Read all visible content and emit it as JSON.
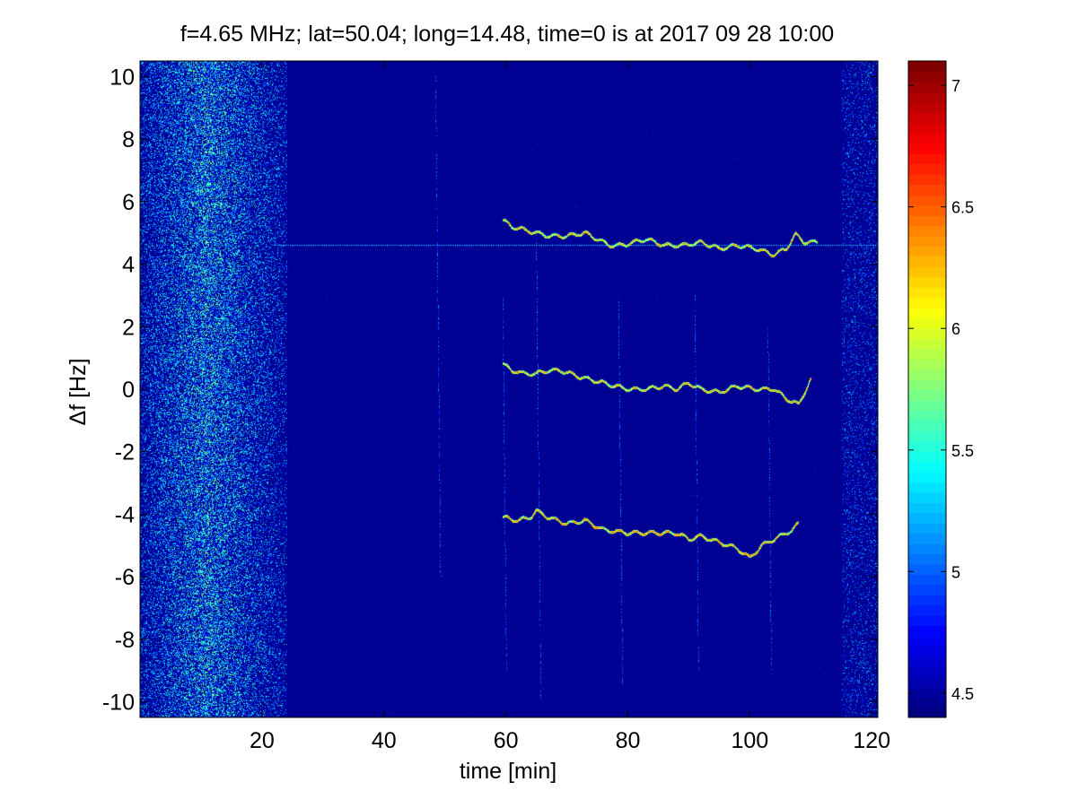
{
  "chart_data": {
    "type": "heatmap",
    "title": "f=4.65 MHz;  lat=50.04; long=14.48, time=0 is at 2017 09 28 10:00",
    "xlabel": "time [min]",
    "ylabel": "Δf [Hz]",
    "xlim": [
      0,
      121
    ],
    "ylim": [
      -10.5,
      10.5
    ],
    "xticks": [
      20,
      40,
      60,
      80,
      100,
      120
    ],
    "yticks": [
      10,
      8,
      6,
      4,
      2,
      0,
      -2,
      -4,
      -6,
      -8,
      -10
    ],
    "colorbar": {
      "colormap": "jet",
      "range": [
        4.4,
        7.1
      ],
      "ticks": [
        4.5,
        5,
        5.5,
        6,
        6.5,
        7
      ]
    },
    "background_level": 4.45,
    "noise_band": {
      "x_range": [
        0,
        24
      ],
      "peak_x": 11,
      "typical_level": 5.0
    },
    "carrier_line": {
      "y": 4.6,
      "x_range": [
        22,
        121
      ],
      "level": 5.2
    },
    "traces": [
      {
        "name": "upper",
        "points": [
          [
            59.5,
            5.4
          ],
          [
            61,
            5.2
          ],
          [
            63,
            5.1
          ],
          [
            65,
            5.0
          ],
          [
            67,
            4.9
          ],
          [
            70,
            4.9
          ],
          [
            73,
            5.0
          ],
          [
            75,
            4.8
          ],
          [
            77,
            4.6
          ],
          [
            79,
            4.6
          ],
          [
            81,
            4.7
          ],
          [
            83,
            4.8
          ],
          [
            86,
            4.6
          ],
          [
            89,
            4.6
          ],
          [
            92,
            4.7
          ],
          [
            95,
            4.5
          ],
          [
            98,
            4.6
          ],
          [
            101,
            4.5
          ],
          [
            104,
            4.3
          ],
          [
            106,
            4.5
          ],
          [
            107.5,
            4.95
          ],
          [
            109,
            4.7
          ],
          [
            111,
            4.7
          ]
        ],
        "level": 6.0
      },
      {
        "name": "middle",
        "points": [
          [
            59.5,
            0.8
          ],
          [
            61,
            0.6
          ],
          [
            63,
            0.5
          ],
          [
            65,
            0.5
          ],
          [
            67,
            0.6
          ],
          [
            69,
            0.6
          ],
          [
            72,
            0.4
          ],
          [
            74,
            0.3
          ],
          [
            76,
            0.2
          ],
          [
            78,
            0.1
          ],
          [
            80,
            0.0
          ],
          [
            83,
            0.0
          ],
          [
            86,
            0.1
          ],
          [
            88,
            0.0
          ],
          [
            90,
            0.2
          ],
          [
            92,
            0.0
          ],
          [
            95,
            -0.1
          ],
          [
            98,
            0.1
          ],
          [
            101,
            0.0
          ],
          [
            104,
            0.0
          ],
          [
            106,
            -0.3
          ],
          [
            108,
            -0.5
          ],
          [
            110,
            0.3
          ]
        ],
        "level": 6.0
      },
      {
        "name": "lower",
        "points": [
          [
            59.5,
            -4.1
          ],
          [
            62,
            -4.2
          ],
          [
            64,
            -4.1
          ],
          [
            65,
            -3.9
          ],
          [
            67,
            -4.1
          ],
          [
            70,
            -4.3
          ],
          [
            73,
            -4.2
          ],
          [
            76,
            -4.5
          ],
          [
            80,
            -4.6
          ],
          [
            84,
            -4.6
          ],
          [
            88,
            -4.6
          ],
          [
            90,
            -4.8
          ],
          [
            92,
            -4.7
          ],
          [
            95,
            -4.9
          ],
          [
            98,
            -5.1
          ],
          [
            100,
            -5.4
          ],
          [
            102,
            -5.0
          ],
          [
            105,
            -4.7
          ],
          [
            107,
            -4.5
          ],
          [
            108,
            -4.3
          ]
        ],
        "level": 6.1
      }
    ]
  },
  "colors": {
    "background": "#00008f",
    "frame": "#000000"
  }
}
